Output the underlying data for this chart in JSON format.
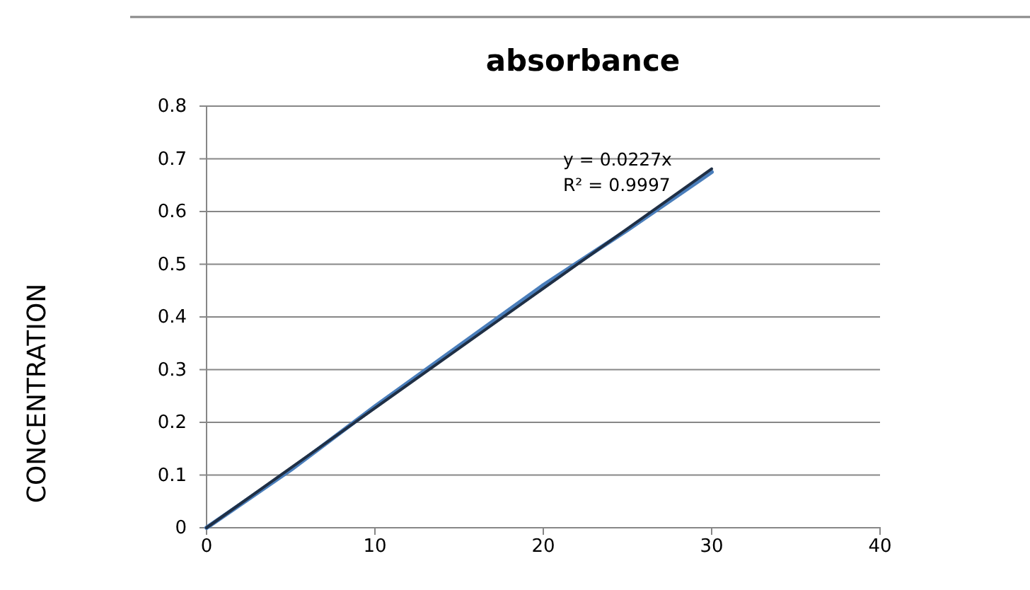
{
  "chart_data": {
    "type": "line",
    "title": "absorbance",
    "ylabel": "CONCENTRATION",
    "x": [
      0,
      5,
      10,
      15,
      20,
      25,
      30
    ],
    "series": [
      {
        "color": "#4a7ebb",
        "values": [
          0,
          0.11,
          0.23,
          0.345,
          0.46,
          0.565,
          0.675
        ]
      },
      {
        "type": "line",
        "color": "#1f2f45",
        "x": [
          0,
          30
        ],
        "values": [
          0,
          0.681
        ]
      }
    ],
    "xlim": [
      0,
      40
    ],
    "xticks": [
      0,
      10,
      20,
      30,
      40
    ],
    "ylim": [
      0,
      0.8
    ],
    "yticks": [
      0,
      0.1,
      0.2,
      0.3,
      0.4,
      0.5,
      0.6,
      0.7,
      0.8
    ],
    "grid": "y",
    "marker": "none",
    "line_style": "solid",
    "annotations": [
      "y = 0.0227x",
      "R² = 0.9997"
    ]
  }
}
